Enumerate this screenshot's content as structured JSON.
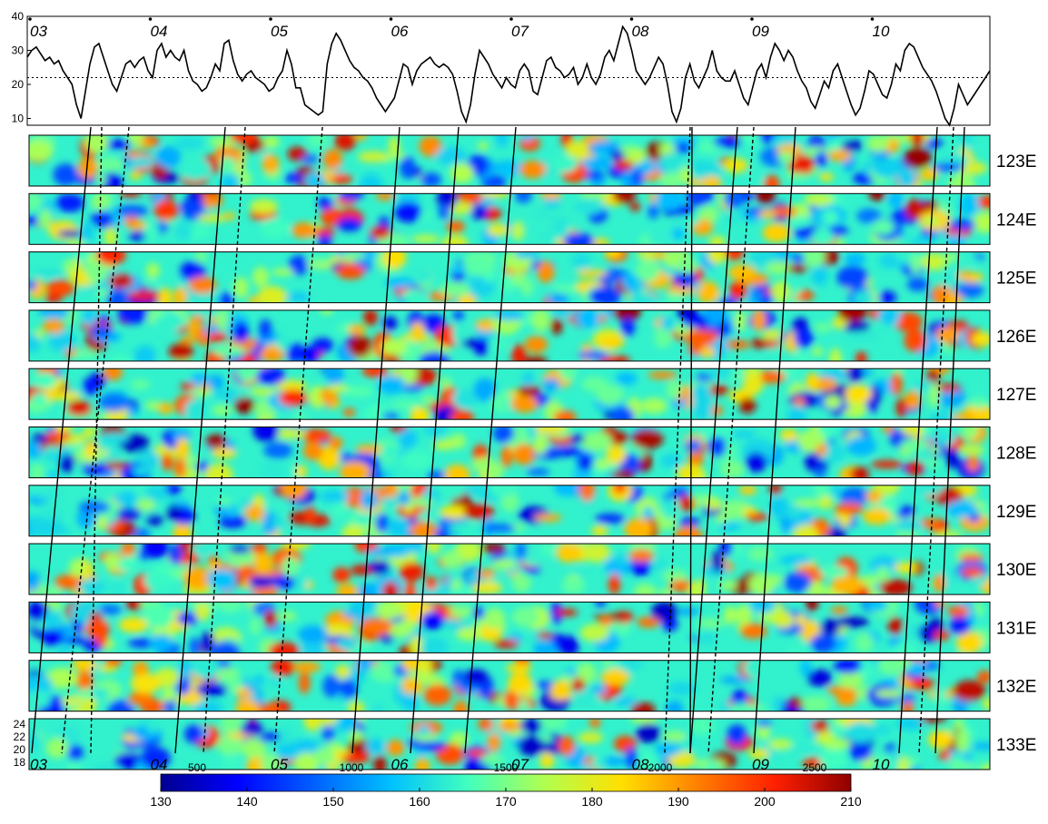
{
  "chart_data": {
    "type": "heatmap",
    "top_series": {
      "type": "line",
      "yticks": [
        "10",
        "20",
        "30",
        "40"
      ],
      "ylim": [
        8,
        40
      ],
      "reference_line": 22,
      "month_labels": [
        "03",
        "04",
        "05",
        "06",
        "07",
        "08",
        "09",
        "10"
      ],
      "values": [
        28,
        30,
        31,
        29,
        27,
        28,
        26,
        27,
        24,
        22,
        20,
        14,
        10,
        18,
        26,
        31,
        32,
        28,
        24,
        20,
        18,
        22,
        26,
        27,
        25,
        27,
        28,
        24,
        22,
        30,
        32,
        28,
        30,
        28,
        27,
        30,
        24,
        21,
        20,
        18,
        19,
        22,
        26,
        24,
        32,
        33,
        27,
        23,
        21,
        23,
        24,
        22,
        21,
        20,
        18,
        19,
        22,
        24,
        30,
        26,
        19,
        19,
        14,
        13,
        12,
        11,
        12,
        26,
        32,
        35,
        33,
        30,
        27,
        25,
        24,
        22,
        21,
        19,
        16,
        14,
        12,
        14,
        16,
        21,
        26,
        25,
        20,
        24,
        26,
        27,
        28,
        26,
        25,
        26,
        25,
        23,
        18,
        12,
        9,
        14,
        23,
        30,
        28,
        26,
        23,
        21,
        19,
        22,
        20,
        19,
        24,
        26,
        24,
        18,
        17,
        22,
        27,
        28,
        25,
        24,
        22,
        23,
        25,
        20,
        22,
        26,
        22,
        20,
        23,
        28,
        30,
        27,
        32,
        37,
        35,
        30,
        24,
        22,
        20,
        22,
        25,
        28,
        26,
        20,
        12,
        9,
        13,
        22,
        26,
        21,
        19,
        22,
        25,
        30,
        24,
        22,
        21,
        21,
        24,
        20,
        16,
        14,
        19,
        24,
        26,
        22,
        28,
        32,
        30,
        27,
        30,
        28,
        24,
        21,
        19,
        15,
        13,
        17,
        21,
        19,
        24,
        26,
        22,
        18,
        14,
        11,
        13,
        18,
        24,
        23,
        20,
        17,
        16,
        20,
        26,
        24,
        30,
        32,
        31,
        28,
        25,
        23,
        21,
        18,
        14,
        10,
        8,
        13,
        20,
        17,
        14,
        16,
        18,
        20,
        22,
        24
      ]
    },
    "panel_labels": [
      "123E",
      "124E",
      "125E",
      "126E",
      "127E",
      "128E",
      "129E",
      "130E",
      "131E",
      "132E",
      "133E"
    ],
    "panel_yticks": [
      "24",
      "22",
      "20",
      "18"
    ],
    "colorbar": {
      "top_ticks": [
        "500",
        "1000",
        "1500",
        "2000",
        "2500"
      ],
      "bottom_ticks": [
        "130",
        "140",
        "150",
        "160",
        "170",
        "180",
        "190",
        "200",
        "210"
      ],
      "colors": [
        "#00008f",
        "#0000ff",
        "#0060ff",
        "#00c0ff",
        "#40ffbf",
        "#b0ff50",
        "#ffe000",
        "#ff8000",
        "#ff2000",
        "#8f0000"
      ]
    }
  }
}
